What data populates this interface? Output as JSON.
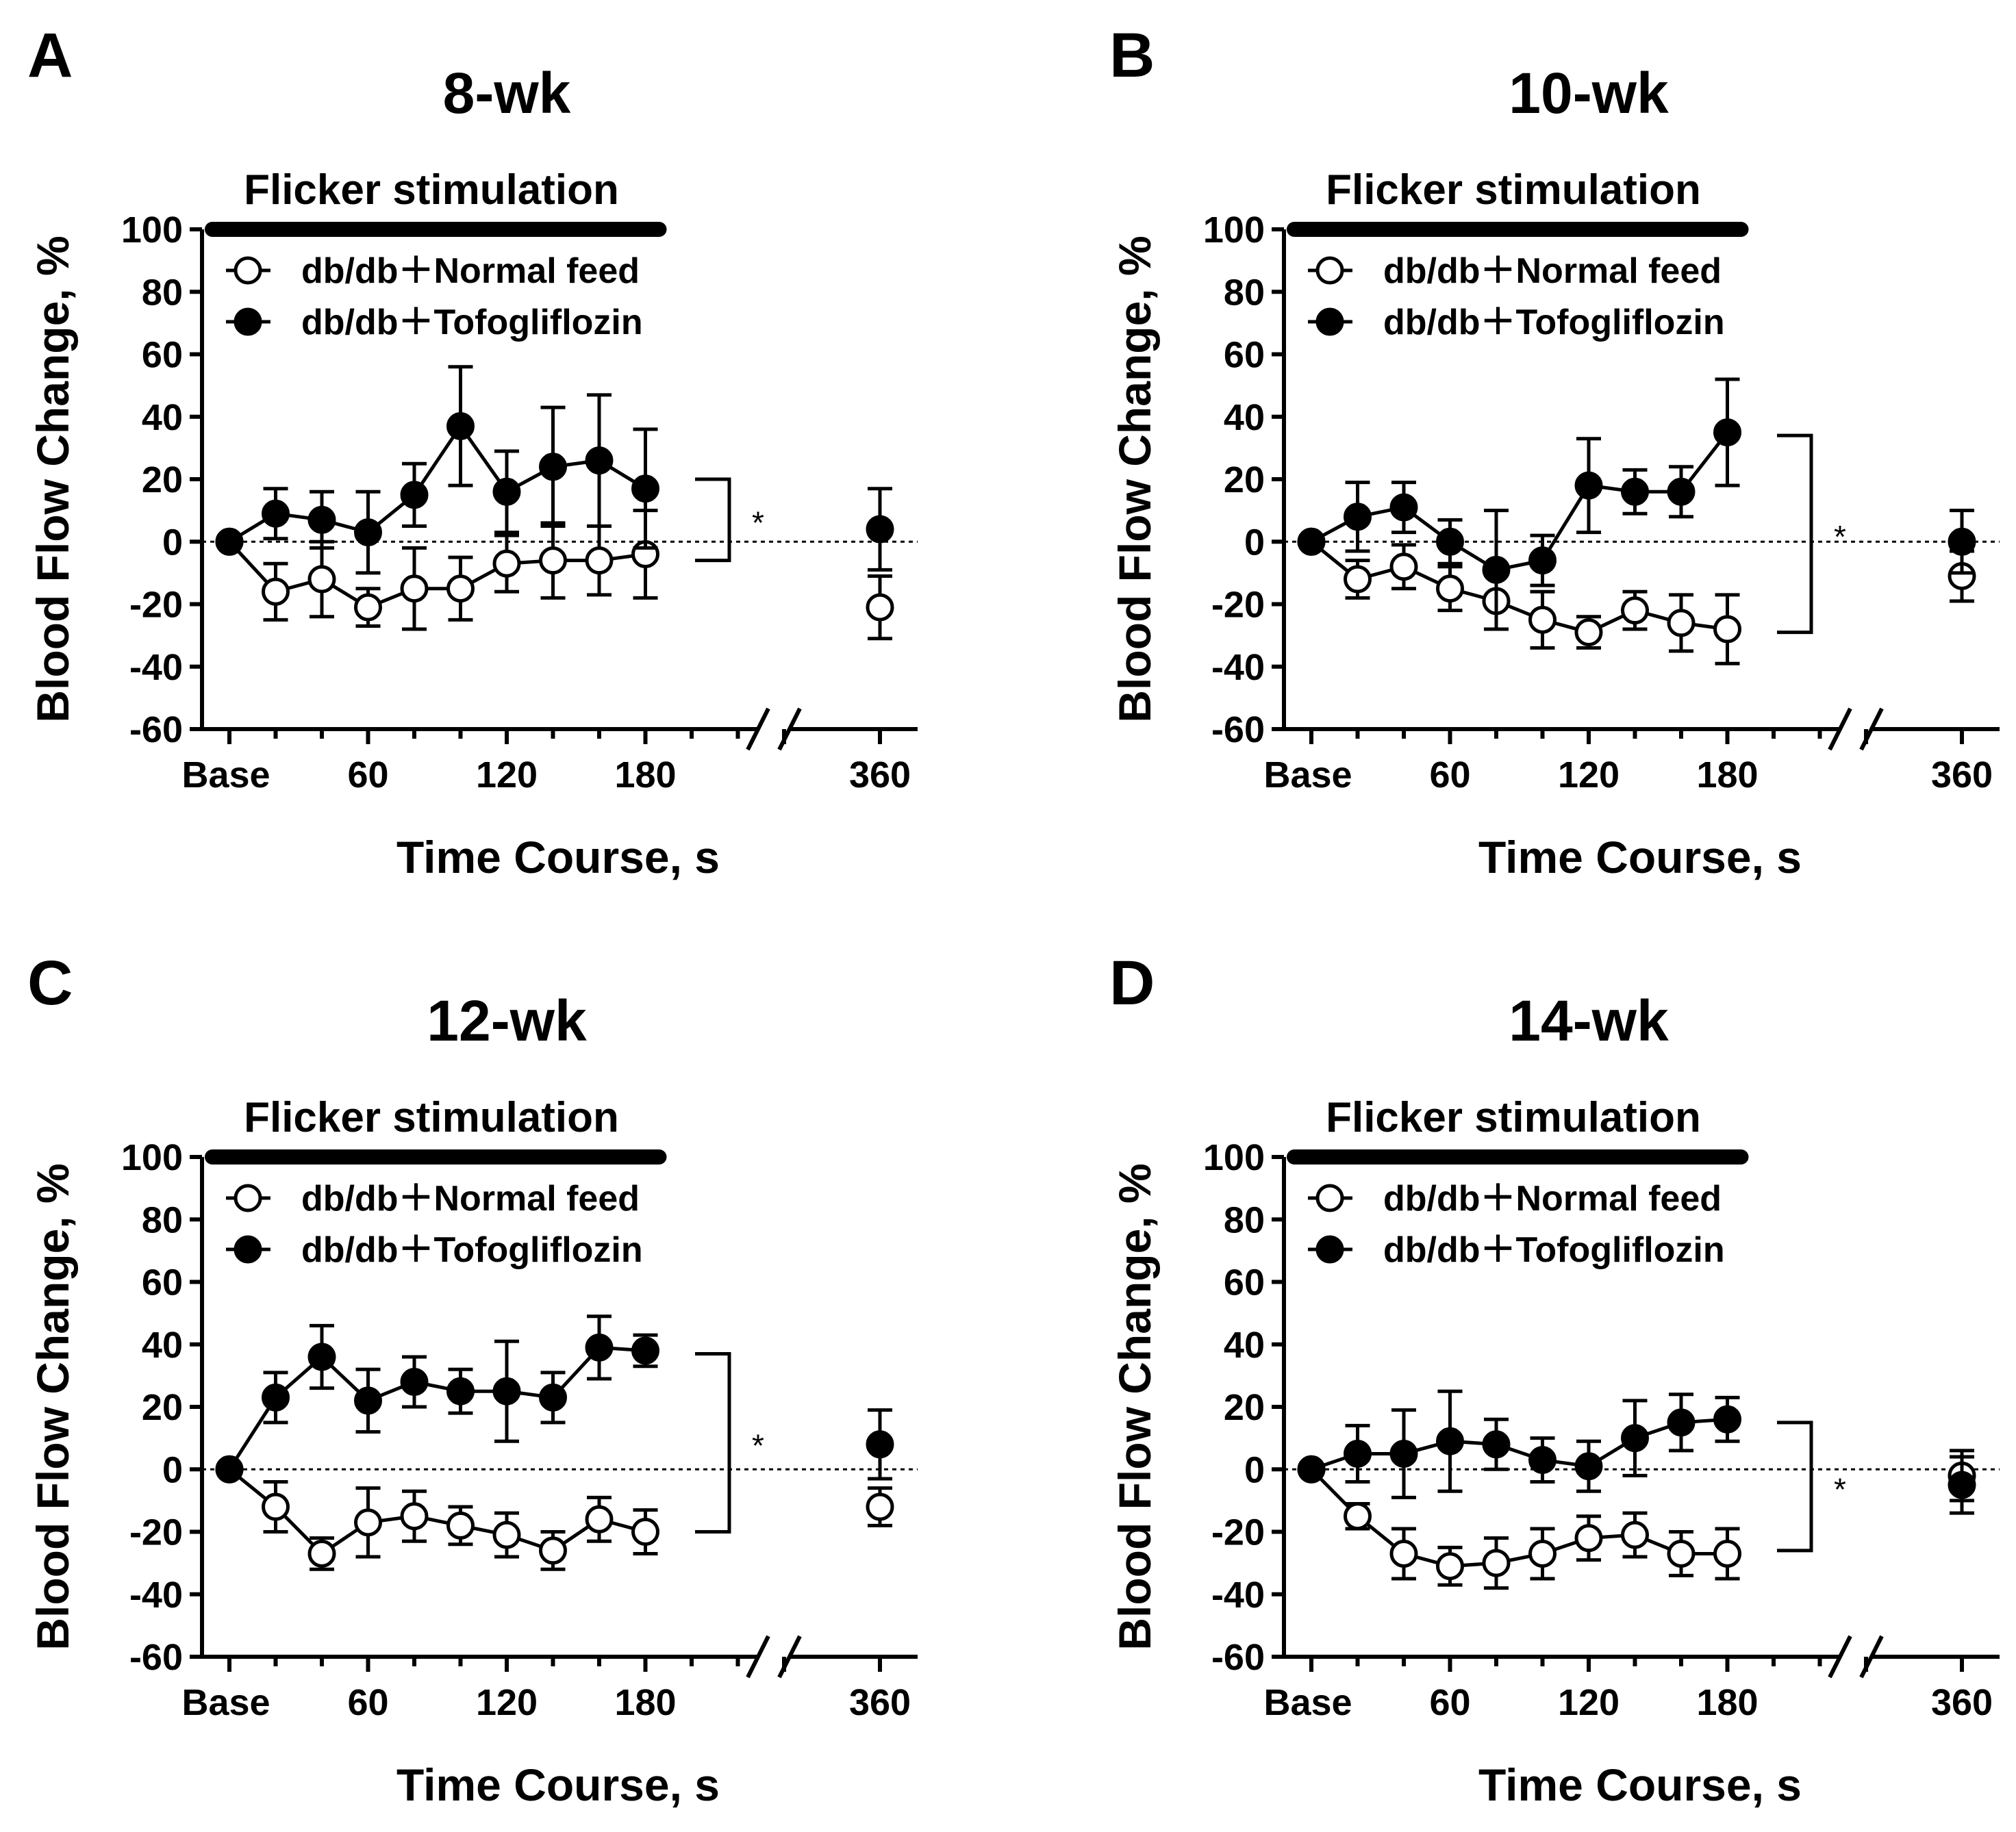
{
  "figure": {
    "x_tick_labels": [
      "Base",
      "60",
      "120",
      "180",
      "360"
    ],
    "stimulation_label": "Flicker stimulation",
    "x_axis_label": "Time Course, s",
    "y_axis_label": "Blood Flow Change, %",
    "y_tick_labels": [
      "100",
      "80",
      "60",
      "40",
      "20",
      "0",
      "-20",
      "-40",
      "-60"
    ],
    "legend": [
      "db/db＋Normal feed",
      "db/db＋Tofogliflozin"
    ],
    "significance": "*"
  },
  "chart_data": [
    {
      "panel": "A",
      "title": "8-wk",
      "type": "line",
      "xlabel": "Time Course, s",
      "ylabel": "Blood Flow Change, %",
      "ylim": [
        -60,
        100
      ],
      "y_ticks": [
        -60,
        -40,
        -20,
        0,
        20,
        40,
        60,
        80,
        100
      ],
      "x": [
        0,
        20,
        40,
        60,
        80,
        100,
        120,
        140,
        160,
        180
      ],
      "x_late": 360,
      "stimulation_window_s": [
        0,
        180
      ],
      "bracket": [
        -6,
        20
      ],
      "series": [
        {
          "name": "db/db＋Normal feed",
          "marker": "open-circle",
          "values": [
            0,
            -16,
            -12,
            -21,
            -15,
            -15,
            -7,
            -6,
            -6,
            -4
          ],
          "errors": [
            0,
            9,
            12,
            6,
            13,
            10,
            9,
            12,
            11,
            14
          ],
          "late_value": -21,
          "late_error": 10
        },
        {
          "name": "db/db＋Tofogliflozin",
          "marker": "filled-circle",
          "values": [
            0,
            9,
            7,
            3,
            15,
            37,
            16,
            24,
            26,
            17
          ],
          "errors": [
            0,
            8,
            9,
            13,
            10,
            19,
            13,
            19,
            21,
            19
          ],
          "late_value": 4,
          "late_error": 13
        }
      ]
    },
    {
      "panel": "B",
      "title": "10-wk",
      "type": "line",
      "xlabel": "Time Course, s",
      "ylabel": "Blood Flow Change, %",
      "ylim": [
        -60,
        100
      ],
      "y_ticks": [
        -60,
        -40,
        -20,
        0,
        20,
        40,
        60,
        80,
        100
      ],
      "x": [
        0,
        20,
        40,
        60,
        80,
        100,
        120,
        140,
        160,
        180
      ],
      "x_late": 360,
      "stimulation_window_s": [
        0,
        180
      ],
      "bracket": [
        -29,
        34
      ],
      "series": [
        {
          "name": "db/db＋Normal feed",
          "marker": "open-circle",
          "values": [
            0,
            -12,
            -8,
            -15,
            -19,
            -25,
            -29,
            -22,
            -26,
            -28
          ],
          "errors": [
            0,
            6,
            7,
            7,
            9,
            9,
            5,
            6,
            9,
            11
          ],
          "late_value": -11,
          "late_error": 8
        },
        {
          "name": "db/db＋Tofogliflozin",
          "marker": "filled-circle",
          "values": [
            0,
            8,
            11,
            0,
            -9,
            -6,
            18,
            16,
            16,
            35
          ],
          "errors": [
            0,
            11,
            8,
            7,
            19,
            8,
            15,
            7,
            8,
            17
          ],
          "late_value": 0,
          "late_error": 10
        }
      ]
    },
    {
      "panel": "C",
      "title": "12-wk",
      "type": "line",
      "xlabel": "Time Course, s",
      "ylabel": "Blood Flow Change, %",
      "ylim": [
        -60,
        100
      ],
      "y_ticks": [
        -60,
        -40,
        -20,
        0,
        20,
        40,
        60,
        80,
        100
      ],
      "x": [
        0,
        20,
        40,
        60,
        80,
        100,
        120,
        140,
        160,
        180
      ],
      "x_late": 360,
      "stimulation_window_s": [
        0,
        180
      ],
      "bracket": [
        -20,
        37
      ],
      "series": [
        {
          "name": "db/db＋Normal feed",
          "marker": "open-circle",
          "values": [
            0,
            -12,
            -27,
            -17,
            -15,
            -18,
            -21,
            -26,
            -16,
            -20
          ],
          "errors": [
            0,
            8,
            5,
            11,
            8,
            6,
            7,
            6,
            7,
            7
          ],
          "late_value": -12,
          "late_error": 6
        },
        {
          "name": "db/db＋Tofogliflozin",
          "marker": "filled-circle",
          "values": [
            0,
            23,
            36,
            22,
            28,
            25,
            25,
            23,
            39,
            38
          ],
          "errors": [
            0,
            8,
            10,
            10,
            8,
            7,
            16,
            8,
            10,
            5
          ],
          "late_value": 8,
          "late_error": 11
        }
      ]
    },
    {
      "panel": "D",
      "title": "14-wk",
      "type": "line",
      "xlabel": "Time Course, s",
      "ylabel": "Blood Flow Change, %",
      "ylim": [
        -60,
        100
      ],
      "y_ticks": [
        -60,
        -40,
        -20,
        0,
        20,
        40,
        60,
        80,
        100
      ],
      "x": [
        0,
        20,
        40,
        60,
        80,
        100,
        120,
        140,
        160,
        180
      ],
      "x_late": 360,
      "stimulation_window_s": [
        0,
        180
      ],
      "bracket": [
        -26,
        15
      ],
      "series": [
        {
          "name": "db/db＋Normal feed",
          "marker": "open-circle",
          "values": [
            0,
            -15,
            -27,
            -31,
            -30,
            -27,
            -22,
            -21,
            -27,
            -27
          ],
          "errors": [
            0,
            4,
            8,
            6,
            8,
            8,
            7,
            7,
            7,
            8
          ],
          "late_value": -2,
          "late_error": 8
        },
        {
          "name": "db/db＋Tofogliflozin",
          "marker": "filled-circle",
          "values": [
            0,
            5,
            5,
            9,
            8,
            3,
            1,
            10,
            15,
            16
          ],
          "errors": [
            0,
            9,
            14,
            16,
            8,
            7,
            8,
            12,
            9,
            7
          ],
          "late_value": -5,
          "late_error": 9
        }
      ]
    }
  ]
}
